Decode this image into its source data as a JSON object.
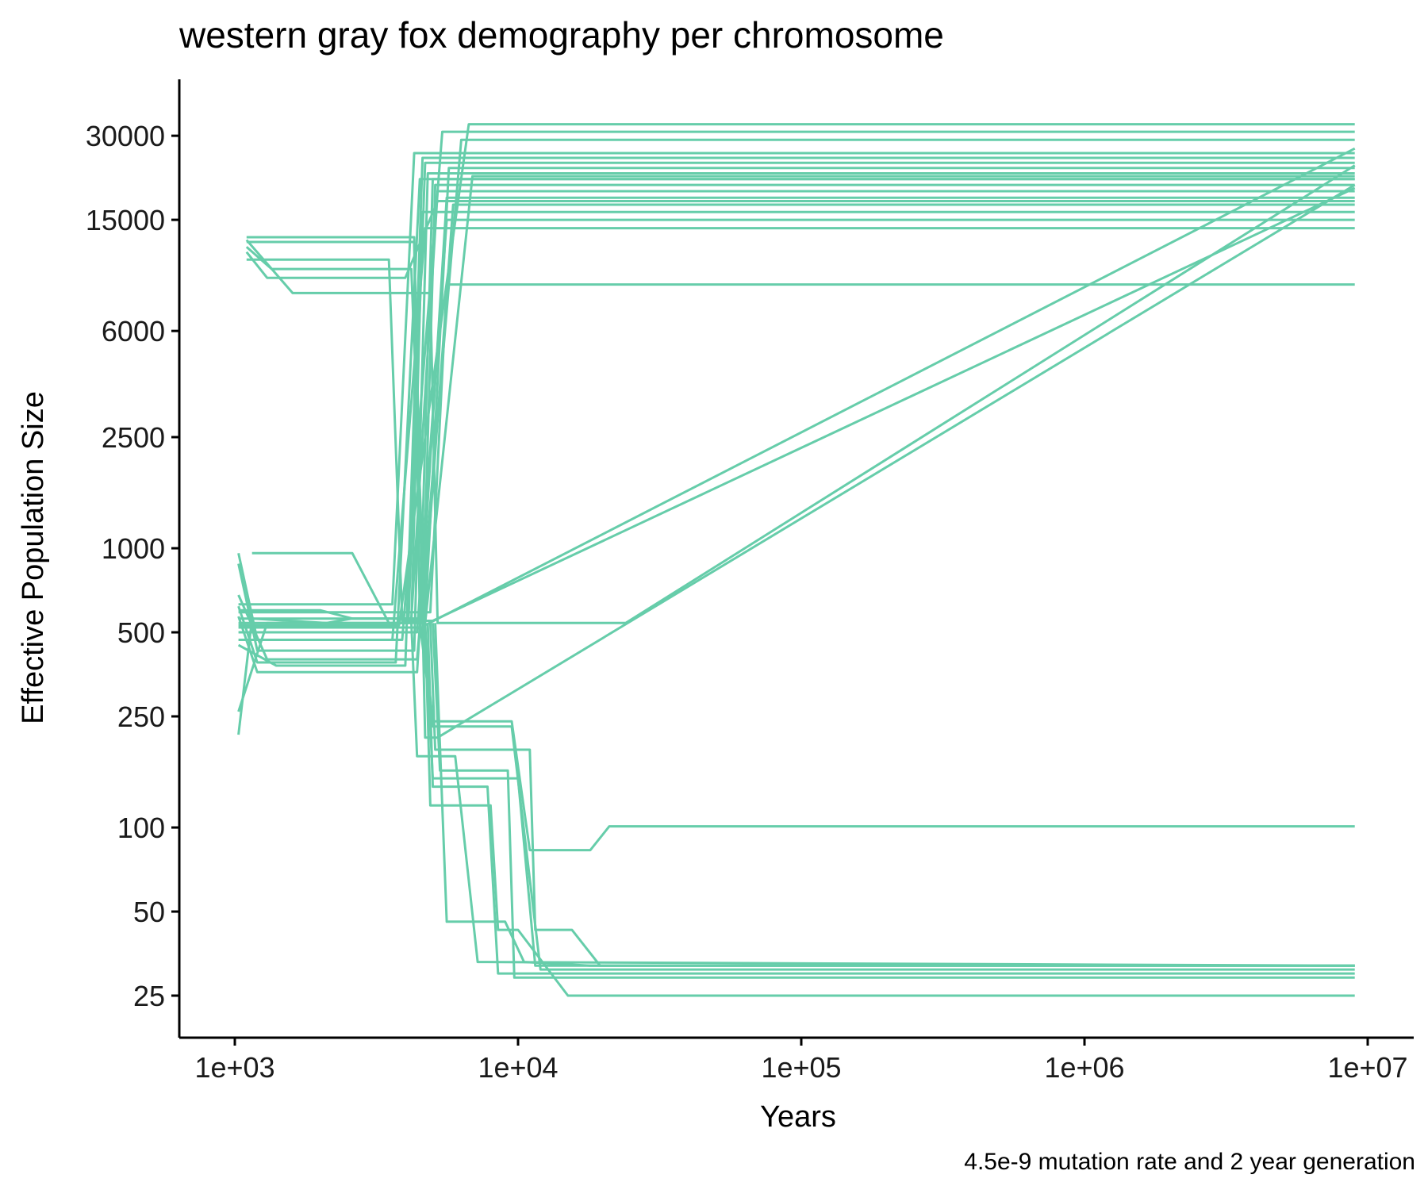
{
  "chart_data": {
    "type": "line",
    "title": "western gray fox demography per chromosome",
    "xlabel": "Years",
    "ylabel": "Effective Population Size",
    "caption": "4.5e-9 mutation rate and 2 year generation",
    "x_scale": "log10",
    "y_scale": "log10",
    "xlim": [
      900,
      10000000
    ],
    "ylim": [
      20,
      42000
    ],
    "xticks": [
      1000,
      10000,
      100000,
      1000000,
      10000000
    ],
    "xtick_labels": [
      "1e+03",
      "1e+04",
      "1e+05",
      "1e+06",
      "1e+07"
    ],
    "yticks": [
      25,
      50,
      100,
      250,
      500,
      1000,
      2500,
      6000,
      15000,
      30000
    ],
    "ytick_labels": [
      "25",
      "50",
      "100",
      "250",
      "500",
      "1000",
      "2500",
      "6000",
      "15000",
      "30000"
    ],
    "grid": false,
    "legend": "none",
    "line_color": "#66cdaa",
    "series": [
      {
        "x": [
          1030,
          1200,
          4300,
          4800,
          9000000
        ],
        "y": [
          880,
          430,
          430,
          22000,
          22000
        ]
      },
      {
        "x": [
          1030,
          1200,
          3700,
          4500,
          9000000
        ],
        "y": [
          620,
          390,
          390,
          21000,
          21000
        ]
      },
      {
        "x": [
          1030,
          1400,
          4000,
          4600,
          9000000
        ],
        "y": [
          450,
          380,
          380,
          25000,
          25000
        ]
      },
      {
        "x": [
          1030,
          1300,
          4100,
          4700,
          9000000
        ],
        "y": [
          260,
          540,
          540,
          24000,
          24000
        ]
      },
      {
        "x": [
          1030,
          1150,
          4200,
          5200,
          9000000
        ],
        "y": [
          215,
          560,
          560,
          19000,
          19000
        ]
      },
      {
        "x": [
          1030,
          1200,
          3900,
          5400,
          9000000
        ],
        "y": [
          960,
          470,
          470,
          31000,
          31000
        ]
      },
      {
        "x": [
          1030,
          1150,
          2100,
          2600,
          4600,
          5100,
          9000000
        ],
        "y": [
          560,
          560,
          540,
          560,
          560,
          20000,
          20000
        ]
      },
      {
        "x": [
          1030,
          1250,
          3600,
          4300,
          9000000
        ],
        "y": [
          630,
          630,
          630,
          26000,
          26000
        ]
      },
      {
        "x": [
          1030,
          1200,
          4400,
          5600,
          9000000
        ],
        "y": [
          570,
          360,
          360,
          18000,
          18000
        ]
      },
      {
        "x": [
          1030,
          1300,
          2000,
          2600,
          4700,
          5700,
          9000000
        ],
        "y": [
          600,
          600,
          600,
          560,
          560,
          23000,
          23000
        ]
      },
      {
        "x": [
          1030,
          1250,
          4600,
          5900,
          9000000
        ],
        "y": [
          520,
          520,
          520,
          17000,
          17000
        ]
      },
      {
        "x": [
          1030,
          1300,
          4400,
          6300,
          9000000
        ],
        "y": [
          680,
          400,
          400,
          29000,
          29000
        ]
      },
      {
        "x": [
          1030,
          1400,
          3800,
          6700,
          9000000
        ],
        "y": [
          530,
          530,
          530,
          33000,
          33000
        ]
      },
      {
        "x": [
          1030,
          1150,
          4200,
          4400,
          5600,
          9000000
        ],
        "y": [
          500,
          500,
          500,
          500,
          15000,
          15000
        ]
      },
      {
        "x": [
          1150,
          2600,
          3500,
          4200,
          4600,
          6200,
          9000000
        ],
        "y": [
          960,
          960,
          540,
          540,
          16000,
          16000,
          16000
        ]
      },
      {
        "x": [
          1030,
          1300,
          3600,
          4700,
          9000000
        ],
        "y": [
          470,
          470,
          470,
          14000,
          14000
        ]
      },
      {
        "x": [
          1030,
          1200,
          4700,
          6900,
          9000000
        ],
        "y": [
          540,
          540,
          540,
          21500,
          21500
        ]
      },
      {
        "x": [
          1030,
          1250,
          4500,
          4900,
          5600,
          9000000
        ],
        "y": [
          590,
          590,
          590,
          590,
          8800,
          8800
        ]
      },
      {
        "x": [
          1100,
          4300,
          4500,
          5000,
          9000000
        ],
        "y": [
          12500,
          12500,
          540,
          21000,
          21000
        ]
      },
      {
        "x": [
          1100,
          1350,
          4200,
          4700,
          9000000
        ],
        "y": [
          12000,
          10000,
          10000,
          530,
          27000
        ]
      },
      {
        "x": [
          1100,
          1300,
          4000,
          5200,
          9000000
        ],
        "y": [
          11500,
          9300,
          9300,
          17500,
          17500
        ]
      },
      {
        "x": [
          1100,
          1600,
          4900,
          5200,
          24000,
          9000000
        ],
        "y": [
          12700,
          8200,
          8200,
          540,
          540,
          23500
        ]
      },
      {
        "x": [
          1100,
          4300,
          4700,
          5200,
          9000000
        ],
        "y": [
          13000,
          13000,
          210,
          210,
          20000
        ]
      },
      {
        "x": [
          1100,
          3500,
          3900,
          5000,
          9000000
        ],
        "y": [
          10800,
          10800,
          550,
          550,
          19500
        ]
      },
      {
        "x": [
          4600,
          5000,
          9500,
          11000,
          18000,
          21000,
          9000000
        ],
        "y": [
          540,
          240,
          240,
          83,
          83,
          101,
          101
        ]
      },
      {
        "x": [
          4500,
          5000,
          9500,
          12000,
          9000000
        ],
        "y": [
          540,
          230,
          230,
          31,
          31
        ]
      },
      {
        "x": [
          4200,
          4400,
          6000,
          7200,
          7800,
          9000000
        ],
        "y": [
          540,
          180,
          180,
          33,
          33,
          32
        ]
      },
      {
        "x": [
          4800,
          5000,
          7800,
          8500,
          9000,
          9000000
        ],
        "y": [
          540,
          140,
          140,
          30,
          30,
          30
        ]
      },
      {
        "x": [
          4700,
          4900,
          8000,
          8500,
          10000,
          15000,
          9000000
        ],
        "y": [
          540,
          120,
          120,
          43,
          43,
          25,
          25
        ]
      },
      {
        "x": [
          5100,
          5600,
          9000,
          10500,
          18000,
          9000000
        ],
        "y": [
          540,
          46,
          46,
          33,
          32,
          32
        ]
      },
      {
        "x": [
          5000,
          5300,
          9200,
          9700,
          9000000
        ],
        "y": [
          540,
          160,
          160,
          29,
          29
        ]
      },
      {
        "x": [
          4900,
          5100,
          11000,
          11500,
          15500,
          19500,
          9000000
        ],
        "y": [
          540,
          190,
          190,
          43,
          43,
          32,
          32
        ]
      },
      {
        "x": [
          4700,
          5000,
          10000,
          11500,
          20000,
          9000000
        ],
        "y": [
          540,
          150,
          150,
          32,
          32,
          32
        ]
      }
    ]
  }
}
